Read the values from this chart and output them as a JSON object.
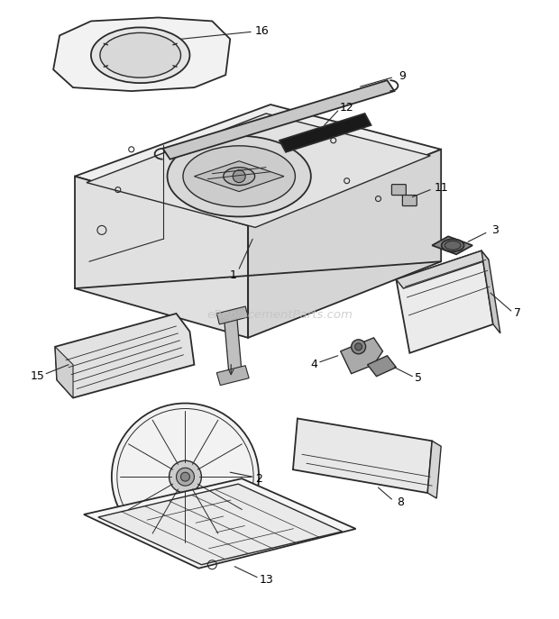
{
  "bg_color": "#ffffff",
  "line_color": "#2a2a2a",
  "label_color": "#000000",
  "watermark": "eReplacementParts.com",
  "watermark_color": "#c0c0c0"
}
